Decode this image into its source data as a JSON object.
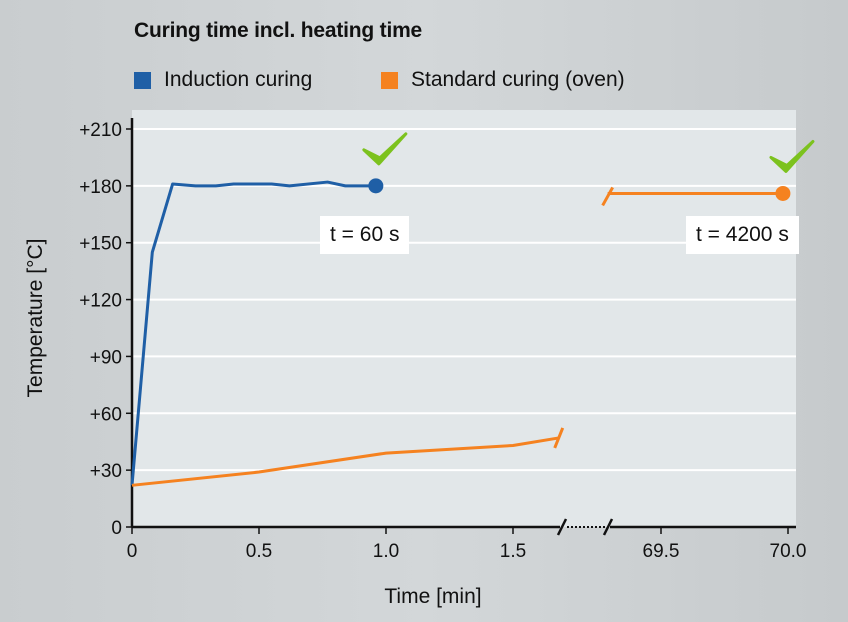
{
  "chart_data": {
    "type": "line",
    "title": "Curing time incl. heating time",
    "xlabel": "Time [min]",
    "ylabel": "Temperature [°C]",
    "ylim": [
      0,
      210
    ],
    "yticks": [
      "0",
      "+30",
      "+60",
      "+90",
      "+120",
      "+150",
      "+180",
      "+210"
    ],
    "ytick_values": [
      0,
      30,
      60,
      90,
      120,
      150,
      180,
      210
    ],
    "x_segments": [
      {
        "range": [
          0,
          1.7
        ],
        "ticks": [
          0,
          0.5,
          1.0,
          1.5
        ],
        "tick_labels": [
          "0",
          "0.5",
          "1.0",
          "1.5"
        ]
      },
      {
        "range": [
          69.25,
          70.0
        ],
        "ticks": [
          69.5,
          70.0
        ],
        "tick_labels": [
          "69.5",
          "70.0"
        ]
      }
    ],
    "axis_break": true,
    "grid": "horizontal",
    "legend_position": "top-left",
    "series": [
      {
        "name": "Induction curing",
        "color": "#1f5fa6",
        "x": [
          0,
          0.08,
          0.16,
          0.25,
          0.33,
          0.4,
          0.55,
          0.62,
          0.77,
          0.84,
          0.96
        ],
        "y": [
          22,
          145,
          181,
          180,
          180,
          181,
          181,
          180,
          182,
          180,
          180
        ],
        "end_marker": true,
        "annotation": "t = 60 s"
      },
      {
        "name": "Standard curing (oven)",
        "color": "#f58220",
        "segments": [
          {
            "x": [
              0,
              0.5,
              1.0,
              1.5,
              1.68
            ],
            "y": [
              22,
              29,
              39,
              43,
              47
            ]
          },
          {
            "x": [
              69.29,
              69.98
            ],
            "y": [
              176,
              176
            ]
          }
        ],
        "end_marker": true,
        "annotation": "t = 4200 s"
      }
    ],
    "checkmark_color": "#7cc21e"
  }
}
